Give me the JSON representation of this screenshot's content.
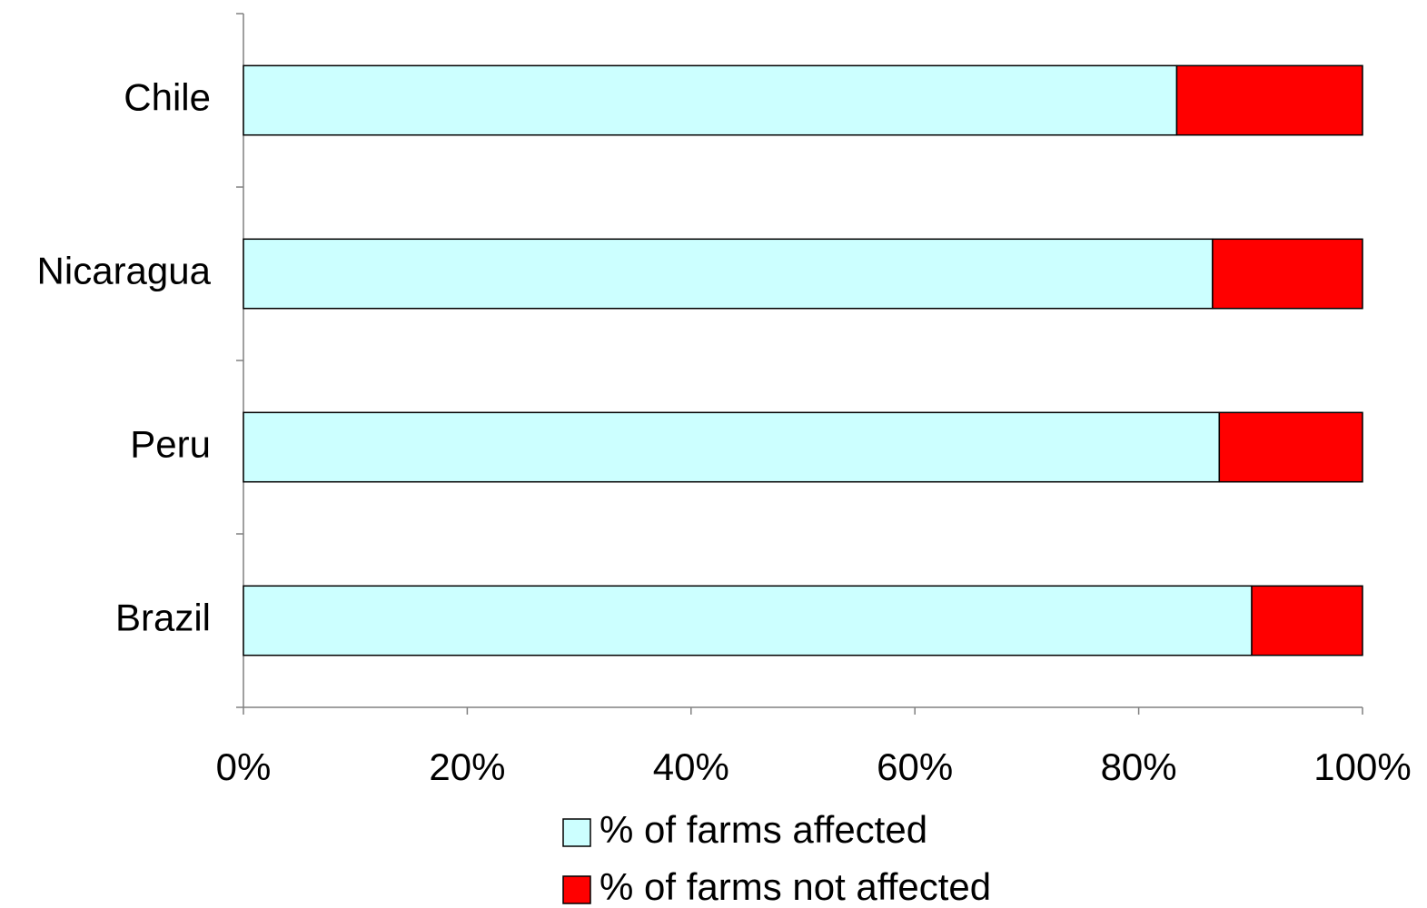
{
  "chart_data": {
    "type": "stacked-bar-horizontal",
    "categories": [
      "Chile",
      "Nicaragua",
      "Peru",
      "Brazil"
    ],
    "series": [
      {
        "name": "% of farms affected",
        "color": "#ccffff",
        "values": [
          83.4,
          86.6,
          87.2,
          90.1
        ]
      },
      {
        "name": "% of farms not affected",
        "color": "#ff0000",
        "values": [
          16.6,
          13.4,
          12.8,
          9.9
        ]
      }
    ],
    "xlim": [
      0,
      100
    ],
    "xticks": [
      {
        "value": 0,
        "label": "0%"
      },
      {
        "value": 20,
        "label": "20%"
      },
      {
        "value": 40,
        "label": "40%"
      },
      {
        "value": 60,
        "label": "60%"
      },
      {
        "value": 80,
        "label": "80%"
      },
      {
        "value": 100,
        "label": "100%"
      }
    ],
    "grid": false,
    "legend": "bottom"
  }
}
